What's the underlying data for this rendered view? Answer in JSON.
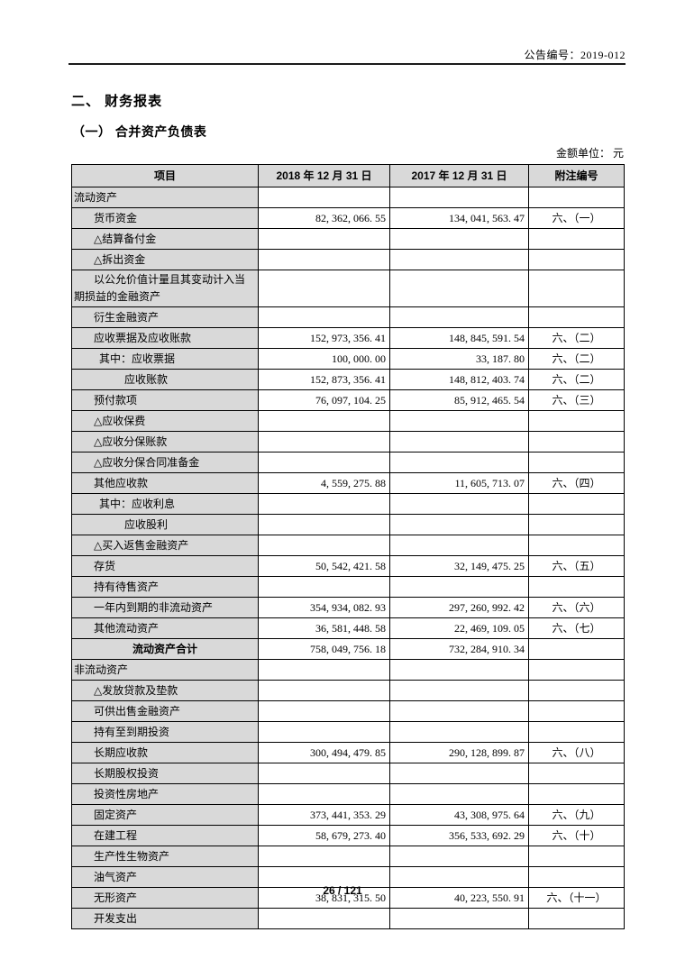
{
  "page": {
    "announcement_no": "公告编号：2019-012",
    "section_title": "二、 财务报表",
    "subsection_title": "（一） 合并资产负债表",
    "unit_label": "金额单位： 元",
    "page_number": "26 / 121"
  },
  "colors": {
    "shade": "#d9d9d9",
    "border": "#000000",
    "rule": "#1b1b1b"
  },
  "table": {
    "headers": [
      "项目",
      "2018 年 12 月 31 日",
      "2017 年 12 月 31 日",
      "附注编号"
    ],
    "rows": [
      {
        "label": "流动资产",
        "indent": 0
      },
      {
        "label": "货币资金",
        "indent": 1,
        "v2018": "82, 362, 066. 55",
        "v2017": "134, 041, 563. 47",
        "note": "六、（一）"
      },
      {
        "label": "△结算备付金",
        "indent": 1
      },
      {
        "label": "△拆出资金",
        "indent": 1
      },
      {
        "label": "以公允价值计量且其变动计入当\n期损益的金融资产",
        "indent": 1
      },
      {
        "label": "衍生金融资产",
        "indent": 1
      },
      {
        "label": "应收票据及应收账款",
        "indent": 1,
        "v2018": "152, 973, 356. 41",
        "v2017": "148, 845, 591. 54",
        "note": "六、（二）"
      },
      {
        "label": "其中：应收票据",
        "indent": 2,
        "v2018": "100, 000. 00",
        "v2017": "33, 187. 80",
        "note": "六、（二）"
      },
      {
        "label": "应收账款",
        "indent": 3,
        "v2018": "152, 873, 356. 41",
        "v2017": "148, 812, 403. 74",
        "note": "六、（二）"
      },
      {
        "label": "预付款项",
        "indent": 1,
        "v2018": "76, 097, 104. 25",
        "v2017": "85, 912, 465. 54",
        "note": "六、（三）"
      },
      {
        "label": "△应收保费",
        "indent": 1
      },
      {
        "label": "△应收分保账款",
        "indent": 1
      },
      {
        "label": "△应收分保合同准备金",
        "indent": 1
      },
      {
        "label": "其他应收款",
        "indent": 1,
        "v2018": "4, 559, 275. 88",
        "v2017": "11, 605, 713. 07",
        "note": "六、（四）"
      },
      {
        "label": "其中：应收利息",
        "indent": 2
      },
      {
        "label": "应收股利",
        "indent": 3
      },
      {
        "label": "△买入返售金融资产",
        "indent": 1
      },
      {
        "label": "存货",
        "indent": 1,
        "v2018": "50, 542, 421. 58",
        "v2017": "32, 149, 475. 25",
        "note": "六、（五）"
      },
      {
        "label": "持有待售资产",
        "indent": 1
      },
      {
        "label": "一年内到期的非流动资产",
        "indent": 1,
        "v2018": "354, 934, 082. 93",
        "v2017": "297, 260, 992. 42",
        "note": "六、（六）"
      },
      {
        "label": "其他流动资产",
        "indent": 1,
        "v2018": "36, 581, 448. 58",
        "v2017": "22, 469, 109. 05",
        "note": "六、（七）"
      },
      {
        "label": "流动资产合计",
        "indent": 0,
        "total": true,
        "v2018": "758, 049, 756. 18",
        "v2017": "732, 284, 910. 34"
      },
      {
        "label": "非流动资产",
        "indent": 0
      },
      {
        "label": "△发放贷款及垫款",
        "indent": 1
      },
      {
        "label": "可供出售金融资产",
        "indent": 1
      },
      {
        "label": "持有至到期投资",
        "indent": 1
      },
      {
        "label": "长期应收款",
        "indent": 1,
        "v2018": "300, 494, 479. 85",
        "v2017": "290, 128, 899. 87",
        "note": "六、（八）"
      },
      {
        "label": "长期股权投资",
        "indent": 1
      },
      {
        "label": "投资性房地产",
        "indent": 1
      },
      {
        "label": "固定资产",
        "indent": 1,
        "v2018": "373, 441, 353. 29",
        "v2017": "43, 308, 975. 64",
        "note": "六、（九）"
      },
      {
        "label": "在建工程",
        "indent": 1,
        "v2018": "58, 679, 273. 40",
        "v2017": "356, 533, 692. 29",
        "note": "六、（十）"
      },
      {
        "label": "生产性生物资产",
        "indent": 1
      },
      {
        "label": "油气资产",
        "indent": 1
      },
      {
        "label": "无形资产",
        "indent": 1,
        "v2018": "38, 831, 315. 50",
        "v2017": "40, 223, 550. 91",
        "note": "六、（十一）"
      },
      {
        "label": "开发支出",
        "indent": 1
      }
    ]
  }
}
